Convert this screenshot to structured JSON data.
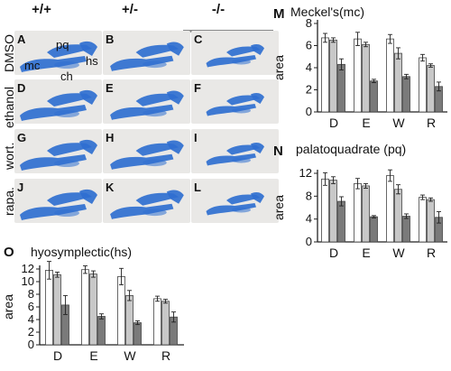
{
  "panel_grid": {
    "column_headers": [
      "+/+",
      "+/-",
      "-/-"
    ],
    "row_labels": [
      "DMSO",
      "ethanol",
      "wort.",
      "rapa."
    ],
    "panel_letters": [
      "A",
      "B",
      "C",
      "D",
      "E",
      "F",
      "G",
      "H",
      "I",
      "J",
      "K",
      "L"
    ],
    "annotations": {
      "pq": "pq",
      "mc": "mc",
      "hs": "hs",
      "ch": "ch"
    },
    "stain_color": "#2f6fd0",
    "background_color": "#e9e8e6"
  },
  "chart_data": [
    {
      "panel_letter": "M",
      "type": "bar",
      "title": "Meckel's(mc)",
      "ylabel": "area",
      "xlabel": "",
      "categories": [
        "D",
        "E",
        "W",
        "R"
      ],
      "ylim": [
        0,
        8
      ],
      "yticks": [
        "0",
        "2",
        "4",
        "6",
        "8"
      ],
      "series": [
        {
          "color": "#ffffff",
          "values": [
            6.7,
            6.6,
            6.6,
            4.9
          ],
          "errors": [
            0.4,
            0.6,
            0.4,
            0.3
          ]
        },
        {
          "color": "#c8c8c8",
          "values": [
            6.5,
            6.1,
            5.3,
            4.2
          ],
          "errors": [
            0.2,
            0.2,
            0.5,
            0.15
          ]
        },
        {
          "color": "#7a7a7a",
          "values": [
            4.3,
            2.8,
            3.2,
            2.3
          ],
          "errors": [
            0.5,
            0.15,
            0.2,
            0.4
          ]
        }
      ]
    },
    {
      "panel_letter": "N",
      "type": "bar",
      "title": "palatoquadrate (pq)",
      "ylabel": "area",
      "xlabel": "",
      "categories": [
        "D",
        "E",
        "W",
        "R"
      ],
      "ylim": [
        0,
        12
      ],
      "yticks": [
        "0",
        "4",
        "8",
        "12"
      ],
      "series": [
        {
          "color": "#ffffff",
          "values": [
            11.0,
            10.2,
            11.6,
            7.8
          ],
          "errors": [
            1.1,
            0.9,
            1.0,
            0.4
          ]
        },
        {
          "color": "#c8c8c8",
          "values": [
            10.8,
            9.8,
            9.2,
            7.4
          ],
          "errors": [
            0.6,
            0.4,
            0.8,
            0.3
          ]
        },
        {
          "color": "#7a7a7a",
          "values": [
            7.1,
            4.4,
            4.5,
            4.3
          ],
          "errors": [
            0.8,
            0.2,
            0.4,
            1.0
          ]
        }
      ]
    },
    {
      "panel_letter": "O",
      "type": "bar",
      "title": "hyosymplectic(hs)",
      "ylabel": "area",
      "xlabel": "",
      "categories": [
        "D",
        "E",
        "W",
        "R"
      ],
      "ylim": [
        0,
        12
      ],
      "yticks": [
        "0",
        "2",
        "4",
        "6",
        "8",
        "10",
        "12"
      ],
      "series": [
        {
          "color": "#ffffff",
          "values": [
            11.8,
            11.9,
            10.8,
            7.3
          ],
          "errors": [
            1.4,
            0.6,
            1.3,
            0.4
          ]
        },
        {
          "color": "#c8c8c8",
          "values": [
            11.1,
            11.2,
            7.8,
            6.9
          ],
          "errors": [
            0.4,
            0.5,
            0.8,
            0.3
          ]
        },
        {
          "color": "#7a7a7a",
          "values": [
            6.3,
            4.5,
            3.5,
            4.4
          ],
          "errors": [
            1.5,
            0.4,
            0.3,
            0.8
          ]
        }
      ]
    }
  ]
}
